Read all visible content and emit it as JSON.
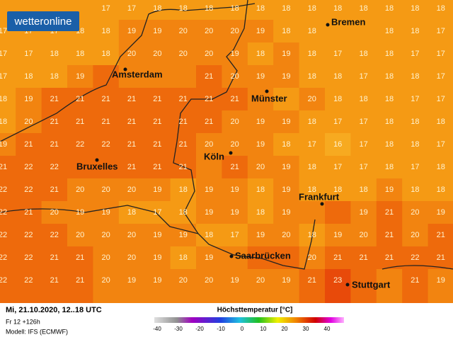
{
  "logo": "wetteronline",
  "grid": {
    "rows": [
      [
        null,
        null,
        null,
        null,
        17,
        17,
        18,
        18,
        18,
        18,
        18,
        18,
        18,
        18,
        18,
        18,
        18,
        18
      ],
      [
        17,
        17,
        17,
        18,
        18,
        19,
        19,
        20,
        20,
        20,
        19,
        18,
        18,
        null,
        null,
        18,
        18,
        17
      ],
      [
        17,
        17,
        18,
        18,
        18,
        20,
        20,
        20,
        20,
        19,
        18,
        19,
        18,
        17,
        18,
        18,
        17,
        17
      ],
      [
        17,
        18,
        18,
        19,
        null,
        null,
        null,
        null,
        21,
        20,
        19,
        19,
        18,
        18,
        17,
        18,
        18,
        17
      ],
      [
        18,
        19,
        21,
        21,
        21,
        21,
        21,
        21,
        21,
        21,
        null,
        null,
        20,
        18,
        18,
        18,
        17,
        17
      ],
      [
        18,
        20,
        21,
        21,
        21,
        21,
        21,
        21,
        21,
        20,
        19,
        19,
        18,
        17,
        17,
        18,
        18,
        18
      ],
      [
        19,
        21,
        21,
        22,
        22,
        21,
        21,
        21,
        20,
        20,
        19,
        18,
        17,
        16,
        17,
        18,
        18,
        17
      ],
      [
        21,
        22,
        22,
        null,
        null,
        21,
        21,
        21,
        null,
        21,
        20,
        19,
        18,
        17,
        17,
        18,
        17,
        18
      ],
      [
        22,
        22,
        21,
        20,
        20,
        20,
        19,
        18,
        19,
        19,
        18,
        19,
        18,
        18,
        18,
        19,
        18,
        18
      ],
      [
        22,
        21,
        20,
        19,
        19,
        18,
        17,
        18,
        19,
        19,
        18,
        19,
        null,
        null,
        19,
        21,
        20,
        19
      ],
      [
        22,
        22,
        22,
        20,
        20,
        20,
        19,
        19,
        18,
        17,
        19,
        20,
        18,
        19,
        20,
        21,
        20,
        21
      ],
      [
        22,
        22,
        21,
        21,
        20,
        20,
        19,
        18,
        19,
        null,
        null,
        null,
        20,
        21,
        21,
        21,
        22,
        21
      ],
      [
        22,
        22,
        21,
        21,
        20,
        19,
        19,
        20,
        20,
        19,
        20,
        19,
        21,
        23,
        null,
        null,
        21,
        19
      ]
    ]
  },
  "cities": [
    "Bremen",
    "Amsterdam",
    "Münster",
    "Köln",
    "Bruxelles",
    "Frankfurt",
    "Saarbrücken",
    "Stuttgart"
  ],
  "footer": {
    "date": "Mi, 21.10.2020, 12..18 UTC",
    "run": "Fr 12 +126h",
    "model": "Modell: IFS (ECMWF)"
  },
  "legend": {
    "title": "Höchsttemperatur [°C]",
    "ticks": [
      -40,
      -30,
      -20,
      -10,
      0,
      10,
      20,
      30,
      40
    ]
  }
}
